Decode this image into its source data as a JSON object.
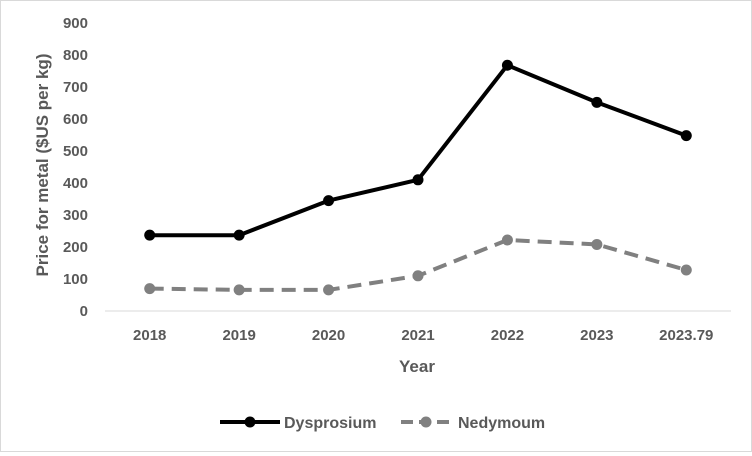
{
  "chart_data": {
    "type": "line",
    "title": "",
    "xlabel": "Year",
    "ylabel": "Price for metal ($US per kg)",
    "categories": [
      "2018",
      "2019",
      "2020",
      "2021",
      "2022",
      "2023",
      "2023.79"
    ],
    "ylim": [
      0,
      900
    ],
    "yticks": [
      0,
      100,
      200,
      300,
      400,
      500,
      600,
      700,
      800,
      900
    ],
    "grid": false,
    "legend_position": "bottom",
    "series": [
      {
        "name": "Dysprosium",
        "values": [
          237,
          237,
          345,
          410,
          768,
          652,
          548
        ],
        "color": "#000000",
        "style": "solid",
        "marker": "circle"
      },
      {
        "name": "Nedymoum",
        "values": [
          70,
          66,
          66,
          110,
          222,
          208,
          128
        ],
        "color": "#808080",
        "style": "dashed",
        "marker": "circle"
      }
    ]
  }
}
